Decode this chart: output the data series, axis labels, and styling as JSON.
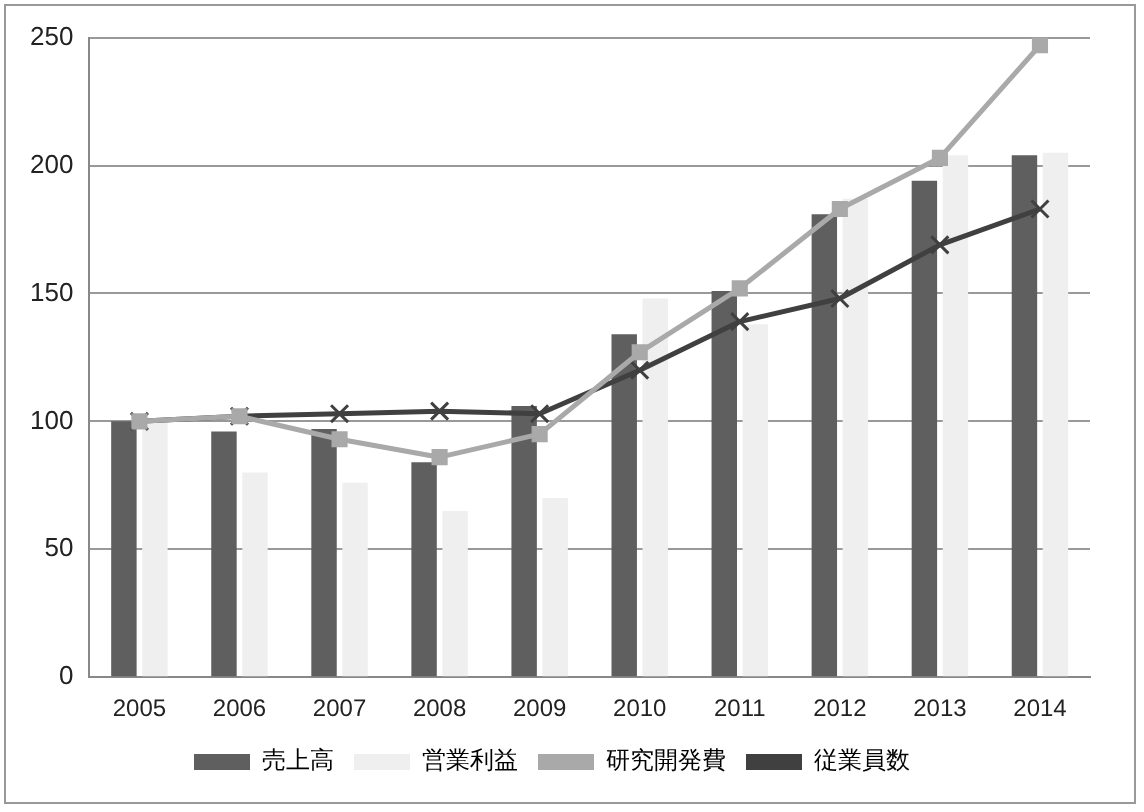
{
  "chart_data": {
    "type": "bar",
    "categories": [
      "2005",
      "2006",
      "2007",
      "2008",
      "2009",
      "2010",
      "2011",
      "2012",
      "2013",
      "2014"
    ],
    "series": [
      {
        "name": "売上高",
        "color": "#5f5f5f",
        "values": [
          100,
          96,
          97,
          84,
          106,
          134,
          151,
          181,
          194,
          204
        ]
      },
      {
        "name": "営業利益",
        "color": "#efefef",
        "values": [
          100,
          80,
          76,
          65,
          70,
          148,
          138,
          187,
          204,
          205
        ]
      },
      {
        "name": "研究開発費",
        "type": "line",
        "color": "#a9a9a9",
        "marker": "square",
        "values": [
          100,
          102,
          93,
          86,
          95,
          127,
          152,
          183,
          203,
          247
        ]
      },
      {
        "name": "従業員数",
        "type": "line",
        "color": "#404040",
        "marker": "cross",
        "values": [
          100,
          102,
          103,
          104,
          103,
          120,
          139,
          148,
          169,
          183
        ]
      }
    ],
    "ylim": [
      0,
      250
    ],
    "yticks": [
      0,
      50,
      100,
      150,
      200,
      250
    ],
    "grid": "y",
    "legend": "bottom"
  }
}
